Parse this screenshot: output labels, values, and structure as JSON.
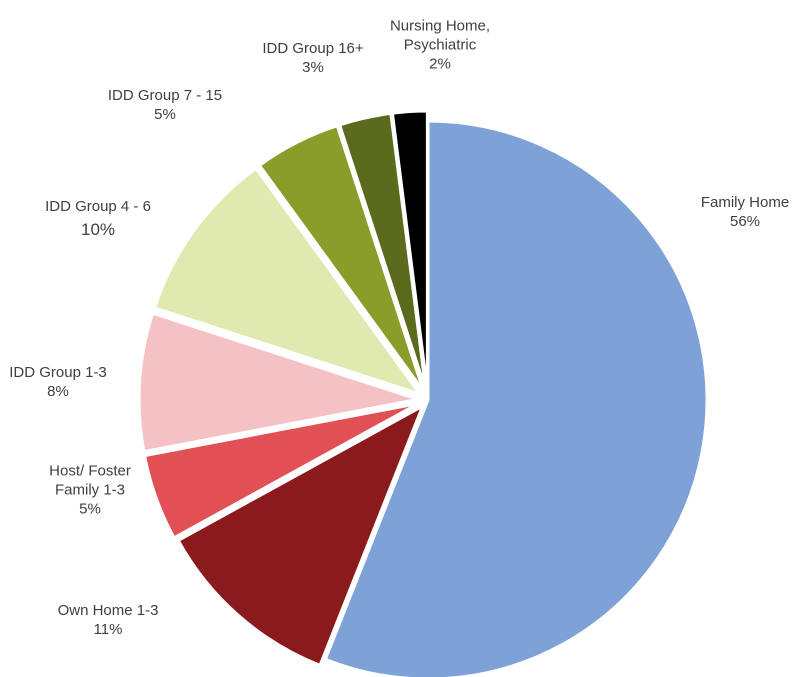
{
  "chart_data": {
    "type": "pie",
    "categories": [
      "Family Home",
      "Own Home 1-3",
      "Host/ Foster Family 1-3",
      "IDD Group 1-3",
      "IDD Group 4 - 6",
      "IDD Group 7 - 15",
      "IDD Group 16+",
      "Nursing Home, Psychiatric"
    ],
    "values": [
      56,
      11,
      5,
      8,
      10,
      5,
      3,
      2
    ],
    "value_labels": [
      "56%",
      "11%",
      "5%",
      "8%",
      "10%",
      "5%",
      "3%",
      "2%"
    ],
    "colors": [
      "#7ea1d8",
      "#8b1a1d",
      "#e05055",
      "#f4c2c4",
      "#e0e9b0",
      "#8a9c2a",
      "#5a6b1e",
      "#000000"
    ]
  }
}
